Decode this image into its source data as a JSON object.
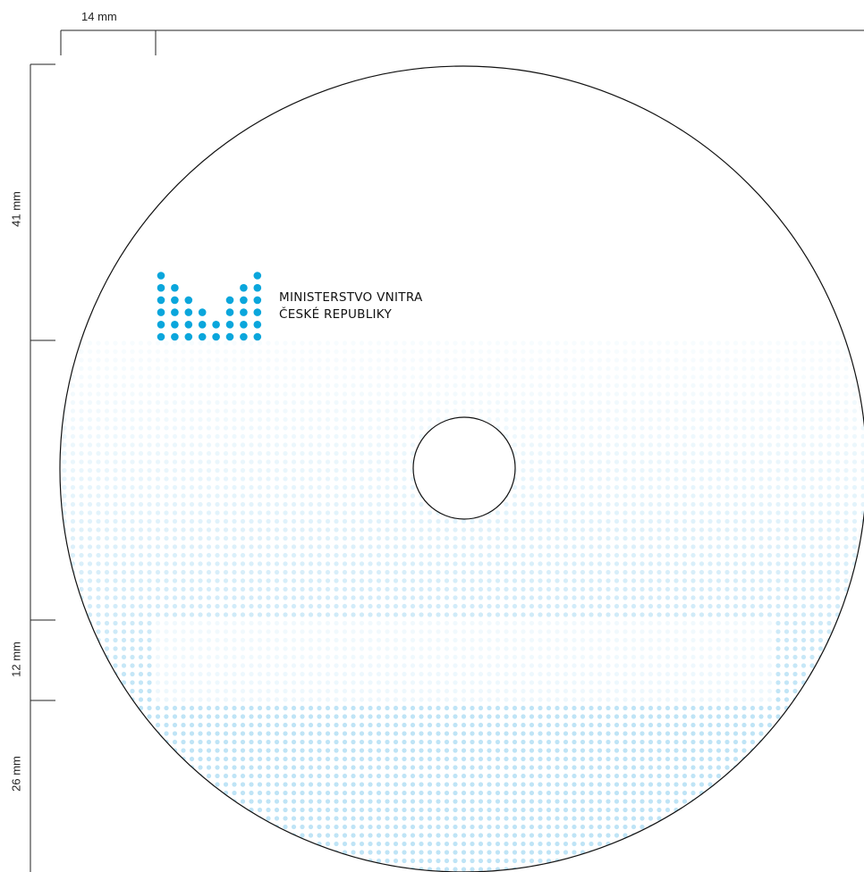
{
  "dimensions": {
    "left_margin": "14 mm",
    "top_section": "41 mm",
    "middle_section": "12 mm",
    "bottom_section": "26 mm"
  },
  "logo": {
    "line1": "MINISTERSTVO VNITRA",
    "line2": "ČESKÉ REPUBLIKY"
  },
  "colors": {
    "brand_blue": "#0aa6dc",
    "pattern_blue": "#bfe4f6",
    "outline": "#111111"
  },
  "logo_icon": "ministry-m-dot-mark-icon",
  "disc_icon": "cd-disc-outline-icon"
}
